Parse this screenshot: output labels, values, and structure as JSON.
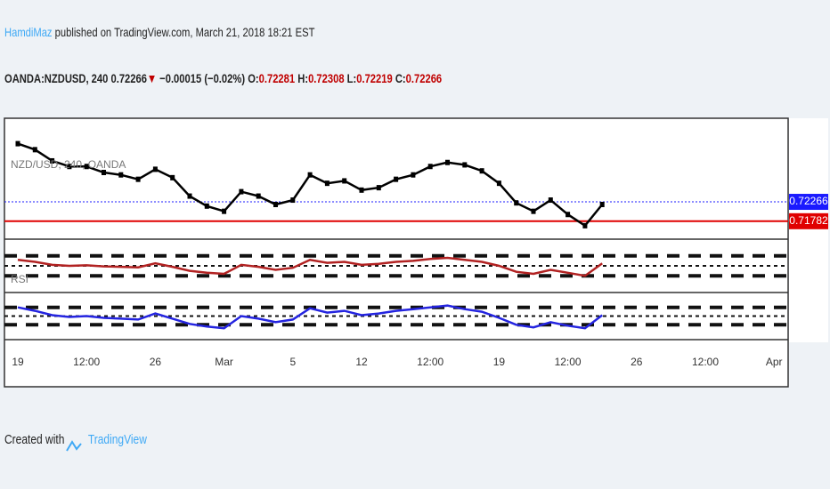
{
  "header": {
    "author": "HamdiMaz",
    "published": "published on TradingView.com, March 21, 2018 18:21 EST"
  },
  "symbol": {
    "name": "OANDA:NZDUSD, 240",
    "last": "0.72266",
    "arrow": "▼",
    "change": "−0.00015 (−0.02%)",
    "o_label": "O:",
    "open": "0.72281",
    "h_label": "H:",
    "high": "0.72308",
    "l_label": "L:",
    "low": "0.72219",
    "c_label": "C:",
    "close": "0.72266"
  },
  "chart_data": [
    {
      "type": "line",
      "name": "NZD/USD, 240, OANDA",
      "color": "#000000",
      "categories": [
        "19",
        null,
        null,
        null,
        "12:00",
        null,
        null,
        null,
        "26",
        null,
        null,
        null,
        "Mar",
        null,
        null,
        null,
        "5",
        null,
        null,
        null,
        "12",
        null,
        null,
        null,
        "12:00",
        null,
        null,
        null,
        "19",
        null,
        null,
        null,
        "12:00",
        null,
        null,
        null,
        "26",
        null,
        null,
        null,
        "12:00",
        null,
        null,
        null,
        "Apr"
      ],
      "values": [
        0.7372,
        0.7357,
        0.7329,
        0.7315,
        0.7315,
        0.73,
        0.7294,
        0.7283,
        0.7308,
        0.7287,
        0.7241,
        0.7216,
        0.7203,
        0.7252,
        0.7241,
        0.722,
        0.7231,
        0.7294,
        0.7273,
        0.7279,
        0.7256,
        0.7262,
        0.7283,
        0.7294,
        0.7315,
        0.7325,
        0.7319,
        0.7304,
        0.7273,
        0.7224,
        0.7203,
        0.7231,
        0.7195,
        0.7167,
        0.722,
        null,
        null,
        null,
        null,
        null,
        null,
        null,
        null,
        null,
        null
      ],
      "ylim": [
        0.714,
        0.742
      ],
      "hlines": [
        {
          "value": 0.72266,
          "color": "#1a1aff"
        },
        {
          "value": 0.71782,
          "color": "#e00000"
        }
      ]
    },
    {
      "type": "line",
      "name": "RSI",
      "color": "#b22222",
      "ylim": [
        0,
        100
      ],
      "bands": [
        70,
        50,
        30
      ],
      "values": [
        62,
        58,
        52,
        50,
        51,
        49,
        48,
        47,
        55,
        48,
        40,
        36,
        34,
        52,
        48,
        42,
        46,
        62,
        56,
        58,
        52,
        54,
        58,
        60,
        64,
        66,
        62,
        58,
        50,
        38,
        34,
        42,
        36,
        30,
        55,
        null,
        null,
        null,
        null,
        null,
        null,
        null,
        null,
        null,
        null
      ]
    },
    {
      "type": "line",
      "color": "#2424e0",
      "ylim": [
        0,
        100
      ],
      "bands": [
        70,
        50,
        30
      ],
      "values": [
        70,
        62,
        52,
        48,
        50,
        46,
        44,
        42,
        56,
        44,
        32,
        26,
        22,
        50,
        44,
        36,
        42,
        68,
        58,
        62,
        52,
        56,
        62,
        66,
        70,
        74,
        66,
        60,
        46,
        30,
        24,
        36,
        28,
        22,
        52,
        null,
        null,
        null,
        null,
        null,
        null,
        null,
        null,
        null,
        null
      ]
    }
  ],
  "footer": {
    "created": "Created with",
    "brand": "TradingView"
  }
}
